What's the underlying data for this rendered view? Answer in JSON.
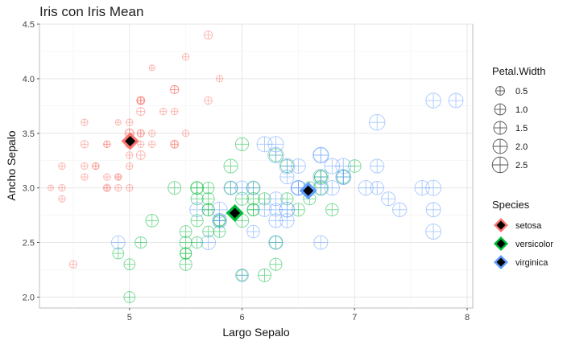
{
  "chart_data": {
    "type": "scatter",
    "title": "Iris con Iris Mean",
    "xlabel": "Largo Sepalo",
    "ylabel": "Ancho Sepalo",
    "xlim": [
      4.2,
      8.05
    ],
    "ylim": [
      1.9,
      4.5
    ],
    "x_ticks": [
      "5",
      "6",
      "7",
      "8"
    ],
    "y_ticks": [
      "2.0",
      "2.5",
      "3.0",
      "3.5",
      "4.0",
      "4.5"
    ],
    "grid": true,
    "legend_position": "right",
    "size_legend": {
      "title": "Petal.Width",
      "values": [
        0.5,
        1.0,
        1.5,
        2.0,
        2.5
      ],
      "labels": [
        "0.5",
        "1.0",
        "1.5",
        "2.0",
        "2.5"
      ]
    },
    "color_legend": {
      "title": "Species",
      "entries": [
        {
          "label": "setosa",
          "color": "#F8766D"
        },
        {
          "label": "versicolor",
          "color": "#00BA38"
        },
        {
          "label": "virginica",
          "color": "#619CFF"
        }
      ]
    },
    "series": [
      {
        "name": "setosa",
        "color": "#F8766D",
        "points": [
          [
            5.1,
            3.5,
            0.2
          ],
          [
            4.9,
            3.0,
            0.2
          ],
          [
            4.7,
            3.2,
            0.2
          ],
          [
            4.6,
            3.1,
            0.2
          ],
          [
            5.0,
            3.6,
            0.2
          ],
          [
            5.4,
            3.9,
            0.4
          ],
          [
            4.6,
            3.4,
            0.3
          ],
          [
            5.0,
            3.4,
            0.2
          ],
          [
            4.4,
            2.9,
            0.2
          ],
          [
            4.9,
            3.1,
            0.1
          ],
          [
            5.4,
            3.7,
            0.2
          ],
          [
            4.8,
            3.4,
            0.2
          ],
          [
            4.8,
            3.0,
            0.1
          ],
          [
            4.3,
            3.0,
            0.1
          ],
          [
            5.8,
            4.0,
            0.2
          ],
          [
            5.7,
            4.4,
            0.4
          ],
          [
            5.4,
            3.9,
            0.4
          ],
          [
            5.1,
            3.5,
            0.3
          ],
          [
            5.7,
            3.8,
            0.3
          ],
          [
            5.1,
            3.8,
            0.3
          ],
          [
            5.4,
            3.4,
            0.2
          ],
          [
            5.1,
            3.7,
            0.4
          ],
          [
            4.6,
            3.6,
            0.2
          ],
          [
            5.1,
            3.3,
            0.5
          ],
          [
            4.8,
            3.4,
            0.2
          ],
          [
            5.0,
            3.0,
            0.2
          ],
          [
            5.0,
            3.4,
            0.4
          ],
          [
            5.2,
            3.5,
            0.2
          ],
          [
            5.2,
            3.4,
            0.2
          ],
          [
            4.7,
            3.2,
            0.2
          ],
          [
            4.8,
            3.1,
            0.2
          ],
          [
            5.4,
            3.4,
            0.4
          ],
          [
            5.2,
            4.1,
            0.1
          ],
          [
            5.5,
            4.2,
            0.2
          ],
          [
            4.9,
            3.1,
            0.2
          ],
          [
            5.0,
            3.2,
            0.2
          ],
          [
            5.5,
            3.5,
            0.2
          ],
          [
            4.9,
            3.6,
            0.1
          ],
          [
            4.4,
            3.0,
            0.2
          ],
          [
            5.1,
            3.4,
            0.2
          ],
          [
            5.0,
            3.5,
            0.3
          ],
          [
            4.5,
            2.3,
            0.3
          ],
          [
            4.4,
            3.2,
            0.2
          ],
          [
            5.0,
            3.5,
            0.6
          ],
          [
            5.1,
            3.8,
            0.4
          ],
          [
            4.8,
            3.0,
            0.3
          ],
          [
            5.1,
            3.8,
            0.2
          ],
          [
            4.6,
            3.2,
            0.2
          ],
          [
            5.3,
            3.7,
            0.2
          ],
          [
            5.0,
            3.3,
            0.2
          ]
        ]
      },
      {
        "name": "versicolor",
        "color": "#00BA38",
        "points": [
          [
            7.0,
            3.2,
            1.4
          ],
          [
            6.4,
            3.2,
            1.5
          ],
          [
            6.9,
            3.1,
            1.5
          ],
          [
            5.5,
            2.3,
            1.3
          ],
          [
            6.5,
            2.8,
            1.5
          ],
          [
            5.7,
            2.8,
            1.3
          ],
          [
            6.3,
            3.3,
            1.6
          ],
          [
            4.9,
            2.4,
            1.0
          ],
          [
            6.6,
            2.9,
            1.3
          ],
          [
            5.2,
            2.7,
            1.4
          ],
          [
            5.0,
            2.0,
            1.0
          ],
          [
            5.9,
            3.0,
            1.5
          ],
          [
            6.0,
            2.2,
            1.0
          ],
          [
            6.1,
            2.9,
            1.4
          ],
          [
            5.6,
            2.9,
            1.3
          ],
          [
            6.7,
            3.1,
            1.4
          ],
          [
            5.6,
            3.0,
            1.5
          ],
          [
            5.8,
            2.7,
            1.0
          ],
          [
            6.2,
            2.2,
            1.5
          ],
          [
            5.6,
            2.5,
            1.1
          ],
          [
            5.9,
            3.2,
            1.8
          ],
          [
            6.1,
            2.8,
            1.3
          ],
          [
            6.3,
            2.5,
            1.5
          ],
          [
            6.1,
            2.8,
            1.2
          ],
          [
            6.4,
            2.9,
            1.3
          ],
          [
            6.6,
            3.0,
            1.4
          ],
          [
            6.8,
            2.8,
            1.4
          ],
          [
            6.7,
            3.0,
            1.7
          ],
          [
            6.0,
            2.9,
            1.5
          ],
          [
            5.7,
            2.6,
            1.0
          ],
          [
            5.5,
            2.4,
            1.1
          ],
          [
            5.5,
            2.4,
            1.0
          ],
          [
            5.8,
            2.7,
            1.2
          ],
          [
            6.0,
            2.7,
            1.6
          ],
          [
            5.4,
            3.0,
            1.5
          ],
          [
            6.0,
            3.4,
            1.6
          ],
          [
            6.7,
            3.1,
            1.5
          ],
          [
            6.3,
            2.3,
            1.3
          ],
          [
            5.6,
            3.0,
            1.3
          ],
          [
            5.5,
            2.5,
            1.3
          ],
          [
            5.5,
            2.6,
            1.2
          ],
          [
            6.1,
            3.0,
            1.4
          ],
          [
            5.8,
            2.6,
            1.2
          ],
          [
            5.0,
            2.3,
            1.0
          ],
          [
            5.6,
            2.7,
            1.3
          ],
          [
            5.7,
            3.0,
            1.2
          ],
          [
            5.7,
            2.9,
            1.3
          ],
          [
            6.2,
            2.9,
            1.3
          ],
          [
            5.1,
            2.5,
            1.1
          ],
          [
            5.7,
            2.8,
            1.3
          ]
        ]
      },
      {
        "name": "virginica",
        "color": "#619CFF",
        "points": [
          [
            6.3,
            3.3,
            2.5
          ],
          [
            5.8,
            2.7,
            1.9
          ],
          [
            7.1,
            3.0,
            2.1
          ],
          [
            6.3,
            2.9,
            1.8
          ],
          [
            6.5,
            3.0,
            2.2
          ],
          [
            7.6,
            3.0,
            2.1
          ],
          [
            4.9,
            2.5,
            1.7
          ],
          [
            7.3,
            2.9,
            1.8
          ],
          [
            6.7,
            2.5,
            1.8
          ],
          [
            7.2,
            3.6,
            2.5
          ],
          [
            6.5,
            3.2,
            2.0
          ],
          [
            6.4,
            2.7,
            1.9
          ],
          [
            6.8,
            3.0,
            2.1
          ],
          [
            5.7,
            2.5,
            2.0
          ],
          [
            5.8,
            2.8,
            2.4
          ],
          [
            6.4,
            3.2,
            2.3
          ],
          [
            6.5,
            3.0,
            1.8
          ],
          [
            7.7,
            3.8,
            2.2
          ],
          [
            7.7,
            2.6,
            2.3
          ],
          [
            6.0,
            2.2,
            1.5
          ],
          [
            6.9,
            3.2,
            2.3
          ],
          [
            5.6,
            2.8,
            2.0
          ],
          [
            7.7,
            2.8,
            2.0
          ],
          [
            6.3,
            2.7,
            1.8
          ],
          [
            6.7,
            3.3,
            2.1
          ],
          [
            7.2,
            3.2,
            1.8
          ],
          [
            6.2,
            2.8,
            1.8
          ],
          [
            6.1,
            3.0,
            1.8
          ],
          [
            6.4,
            2.8,
            2.1
          ],
          [
            7.2,
            3.0,
            1.6
          ],
          [
            7.4,
            2.8,
            1.9
          ],
          [
            7.9,
            3.8,
            2.0
          ],
          [
            6.4,
            2.8,
            2.2
          ],
          [
            6.3,
            2.8,
            1.5
          ],
          [
            6.1,
            2.6,
            1.4
          ],
          [
            7.7,
            3.0,
            2.3
          ],
          [
            6.3,
            3.4,
            2.4
          ],
          [
            6.4,
            3.1,
            1.8
          ],
          [
            6.0,
            3.0,
            1.8
          ],
          [
            6.9,
            3.1,
            2.1
          ],
          [
            6.7,
            3.1,
            2.4
          ],
          [
            6.9,
            3.1,
            2.3
          ],
          [
            5.8,
            2.7,
            1.9
          ],
          [
            6.8,
            3.2,
            2.3
          ],
          [
            6.7,
            3.3,
            2.5
          ],
          [
            6.7,
            3.0,
            2.3
          ],
          [
            6.3,
            2.5,
            1.9
          ],
          [
            6.5,
            3.0,
            2.0
          ],
          [
            6.2,
            3.4,
            2.3
          ],
          [
            5.9,
            3.0,
            1.8
          ]
        ]
      }
    ],
    "means": [
      {
        "species": "setosa",
        "x": 5.006,
        "y": 3.428
      },
      {
        "species": "versicolor",
        "x": 5.936,
        "y": 2.77
      },
      {
        "species": "virginica",
        "x": 6.588,
        "y": 2.974
      }
    ]
  }
}
